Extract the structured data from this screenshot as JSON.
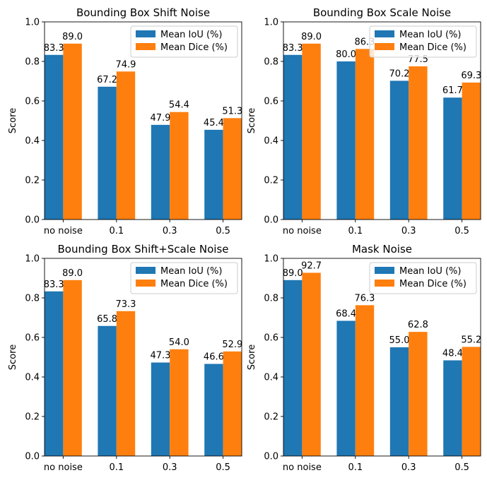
{
  "colors": {
    "iou": "#1f77b4",
    "dice": "#ff7f0e"
  },
  "chart_data": [
    {
      "type": "bar",
      "title": "Bounding Box Shift Noise",
      "ylabel": "Score",
      "xlabel": "",
      "ylim": [
        0,
        1.0
      ],
      "yticks": [
        "0.0",
        "0.2",
        "0.4",
        "0.6",
        "0.8",
        "1.0"
      ],
      "categories": [
        "no noise",
        "0.1",
        "0.3",
        "0.5"
      ],
      "legend_position": "top-right",
      "series": [
        {
          "name": "Mean IoU (%)",
          "values": [
            0.833,
            0.672,
            0.479,
            0.454
          ],
          "labels": [
            "83.3",
            "67.2",
            "47.9",
            "45.4"
          ]
        },
        {
          "name": "Mean Dice (%)",
          "values": [
            0.89,
            0.749,
            0.544,
            0.513
          ],
          "labels": [
            "89.0",
            "74.9",
            "54.4",
            "51.3"
          ]
        }
      ]
    },
    {
      "type": "bar",
      "title": "Bounding Box Scale Noise",
      "ylabel": "Score",
      "xlabel": "",
      "ylim": [
        0,
        1.0
      ],
      "yticks": [
        "0.0",
        "0.2",
        "0.4",
        "0.6",
        "0.8",
        "1.0"
      ],
      "categories": [
        "no noise",
        "0.1",
        "0.3",
        "0.5"
      ],
      "legend_position": "top-right",
      "series": [
        {
          "name": "Mean IoU (%)",
          "values": [
            0.833,
            0.8,
            0.702,
            0.617
          ],
          "labels": [
            "83.3",
            "80.0",
            "70.2",
            "61.7"
          ]
        },
        {
          "name": "Mean Dice (%)",
          "values": [
            0.89,
            0.863,
            0.775,
            0.693
          ],
          "labels": [
            "89.0",
            "86.3",
            "77.5",
            "69.3"
          ]
        }
      ]
    },
    {
      "type": "bar",
      "title": "Bounding Box Shift+Scale Noise",
      "ylabel": "Score",
      "xlabel": "",
      "ylim": [
        0,
        1.0
      ],
      "yticks": [
        "0.0",
        "0.2",
        "0.4",
        "0.6",
        "0.8",
        "1.0"
      ],
      "categories": [
        "no noise",
        "0.1",
        "0.3",
        "0.5"
      ],
      "legend_position": "top-right",
      "series": [
        {
          "name": "Mean IoU (%)",
          "values": [
            0.833,
            0.658,
            0.473,
            0.466
          ],
          "labels": [
            "83.3",
            "65.8",
            "47.3",
            "46.6"
          ]
        },
        {
          "name": "Mean Dice (%)",
          "values": [
            0.89,
            0.733,
            0.54,
            0.529
          ],
          "labels": [
            "89.0",
            "73.3",
            "54.0",
            "52.9"
          ]
        }
      ]
    },
    {
      "type": "bar",
      "title": "Mask Noise",
      "ylabel": "Score",
      "xlabel": "",
      "ylim": [
        0,
        1.0
      ],
      "yticks": [
        "0.0",
        "0.2",
        "0.4",
        "0.6",
        "0.8",
        "1.0"
      ],
      "categories": [
        "no noise",
        "0.1",
        "0.3",
        "0.5"
      ],
      "legend_position": "top-right",
      "series": [
        {
          "name": "Mean IoU (%)",
          "values": [
            0.89,
            0.684,
            0.55,
            0.484
          ],
          "labels": [
            "89.0",
            "68.4",
            "55.0",
            "48.4"
          ]
        },
        {
          "name": "Mean Dice (%)",
          "values": [
            0.927,
            0.763,
            0.628,
            0.552
          ],
          "labels": [
            "92.7",
            "76.3",
            "62.8",
            "55.2"
          ]
        }
      ]
    }
  ]
}
